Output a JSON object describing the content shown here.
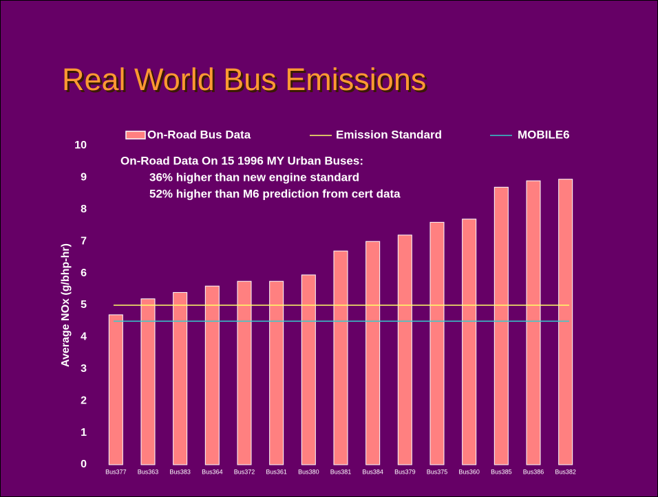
{
  "chart_data": {
    "type": "bar",
    "title": "Real World Bus Emissions",
    "y_label": "Average NOx (g/bhp-hr)",
    "annotations": [
      "On-Road Data On 15 1996 MY Urban Buses:",
      "36% higher than new engine standard",
      "52% higher than M6 prediction from cert data"
    ],
    "categories": [
      "Bus377",
      "Bus363",
      "Bus383",
      "Bus364",
      "Bus372",
      "Bus361",
      "Bus380",
      "Bus381",
      "Bus384",
      "Bus379",
      "Bus375",
      "Bus360",
      "Bus385",
      "Bus386",
      "Bus382"
    ],
    "series": [
      {
        "name": "On-Road Bus Data",
        "color": "#ff8080",
        "values": [
          4.7,
          5.2,
          5.4,
          5.6,
          5.75,
          5.75,
          5.95,
          6.7,
          7.0,
          7.2,
          7.6,
          7.7,
          8.7,
          8.9,
          8.95
        ]
      }
    ],
    "reference_lines": [
      {
        "name": "Emission Standard",
        "color": "#ffff66",
        "value": 5.0
      },
      {
        "name": "MOBILE6",
        "color": "#33cccc",
        "value": 4.5
      }
    ],
    "ylim": [
      0,
      10
    ],
    "yticks": [
      0,
      1,
      2,
      3,
      4,
      5,
      6,
      7,
      8,
      9,
      10
    ],
    "grid": false
  }
}
